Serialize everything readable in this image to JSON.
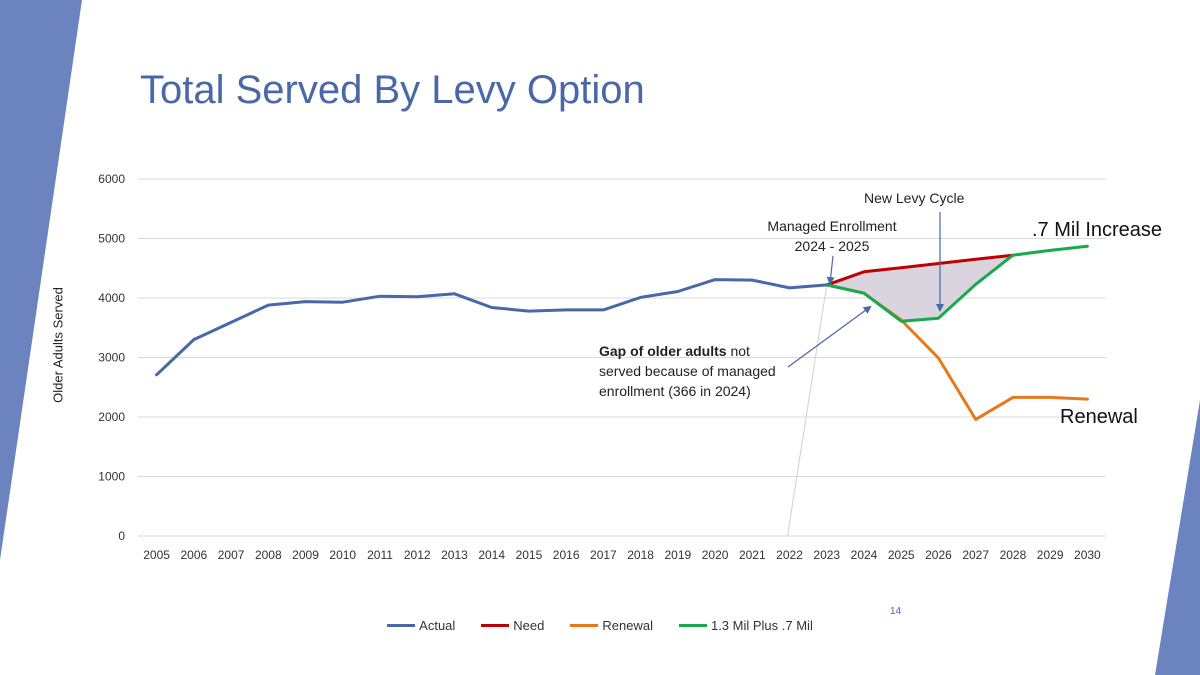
{
  "slide": {
    "title": "Total Served By Levy Option",
    "page_number": "14",
    "colors": {
      "title": "#4a67a8",
      "accent_band": "#6b84c0"
    }
  },
  "annotations": {
    "managed_line1": "Managed Enrollment",
    "managed_line2": "2024 - 2025",
    "new_levy": "New Levy Cycle",
    "gap_bold": "Gap of older adults",
    "gap_rest1": " not",
    "gap_rest2": "served because of managed",
    "gap_rest3": "enrollment (366 in 2024)",
    "increase_label": ".7 Mil Increase",
    "renewal_label": "Renewal"
  },
  "chart_data": {
    "type": "line",
    "title": "",
    "xlabel": "",
    "ylabel": "Older Adults Served",
    "ylim": [
      0,
      6000
    ],
    "yticks": [
      0,
      1000,
      2000,
      3000,
      4000,
      5000,
      6000
    ],
    "grid": true,
    "legend_position": "bottom",
    "categories": [
      "2005",
      "2006",
      "2007",
      "2008",
      "2009",
      "2010",
      "2011",
      "2012",
      "2013",
      "2014",
      "2015",
      "2016",
      "2017",
      "2018",
      "2019",
      "2020",
      "2021",
      "2022",
      "2023",
      "2024",
      "2025",
      "2026",
      "2027",
      "2028",
      "2029",
      "2030"
    ],
    "series": [
      {
        "name": "Actual",
        "color": "#4a67a8",
        "values": [
          2710,
          3300,
          3590,
          3880,
          3940,
          3930,
          4030,
          4020,
          4070,
          3840,
          3780,
          3800,
          3800,
          4010,
          4110,
          4310,
          4300,
          4170,
          4220,
          null,
          null,
          null,
          null,
          null,
          null,
          null
        ]
      },
      {
        "name": "Need",
        "color": "#c00000",
        "values": [
          null,
          null,
          null,
          null,
          null,
          null,
          null,
          null,
          null,
          null,
          null,
          null,
          null,
          null,
          null,
          null,
          null,
          null,
          4220,
          4440,
          4510,
          4580,
          4650,
          4720,
          null,
          null
        ]
      },
      {
        "name": "Renewal",
        "color": "#e57a1a",
        "values": [
          null,
          null,
          null,
          null,
          null,
          null,
          null,
          null,
          null,
          null,
          null,
          null,
          null,
          null,
          null,
          null,
          null,
          null,
          4220,
          4080,
          3630,
          2990,
          1960,
          2330,
          2330,
          2300
        ]
      },
      {
        "name": "1.3 Mil Plus .7 Mil",
        "color": "#19a94d",
        "values": [
          null,
          null,
          null,
          null,
          null,
          null,
          null,
          null,
          null,
          null,
          null,
          null,
          null,
          null,
          null,
          null,
          null,
          null,
          4220,
          4080,
          3610,
          3660,
          4230,
          4720,
          4800,
          4870
        ]
      }
    ]
  }
}
